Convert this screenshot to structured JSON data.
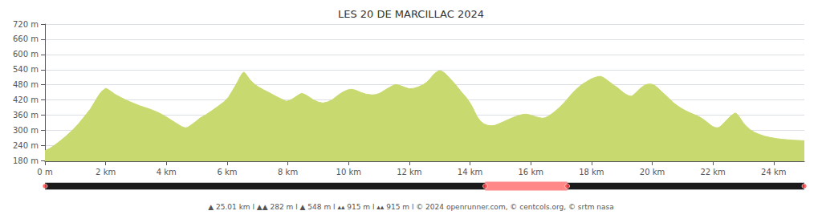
{
  "chart_data": {
    "type": "area",
    "title": "LES 20 DE MARCILLAC 2024",
    "footer": "▲ 25.01 km l ▲▲ 282 m l ▲ 548 m l ▴▴ 915 m l ▴▴ 915 m l © 2024 openrunner.com, © centcols.org, © srtm nasa",
    "x": [
      0,
      150,
      300,
      500,
      700,
      900,
      1100,
      1300,
      1500,
      1650,
      1750,
      1850,
      1950,
      2000,
      2050,
      2150,
      2300,
      2500,
      2700,
      2900,
      3100,
      3300,
      3500,
      3700,
      3900,
      4100,
      4300,
      4500,
      4620,
      4700,
      4800,
      4950,
      5100,
      5300,
      5500,
      5700,
      5900,
      6050,
      6150,
      6250,
      6350,
      6430,
      6480,
      6520,
      6550,
      6580,
      6620,
      6680,
      6750,
      6850,
      6950,
      7050,
      7200,
      7400,
      7600,
      7800,
      7950,
      8050,
      8150,
      8250,
      8350,
      8440,
      8520,
      8620,
      8720,
      8850,
      9000,
      9150,
      9300,
      9450,
      9580,
      9700,
      9820,
      9930,
      10030,
      10130,
      10250,
      10400,
      10580,
      10780,
      10920,
      11050,
      11180,
      11320,
      11440,
      11530,
      11620,
      11720,
      11850,
      12000,
      12150,
      12300,
      12450,
      12570,
      12680,
      12780,
      12870,
      12950,
      13000,
      13060,
      13150,
      13250,
      13380,
      13500,
      13620,
      13740,
      13860,
      13970,
      14060,
      14150,
      14230,
      14330,
      14450,
      14580,
      14700,
      14820,
      14950,
      15100,
      15280,
      15440,
      15580,
      15700,
      15820,
      15950,
      16050,
      16160,
      16280,
      16380,
      16480,
      16580,
      16680,
      16800,
      16920,
      17050,
      17180,
      17320,
      17460,
      17590,
      17710,
      17830,
      17940,
      18040,
      18140,
      18240,
      18310,
      18370,
      18440,
      18540,
      18640,
      18740,
      18840,
      18940,
      19040,
      19140,
      19240,
      19330,
      19420,
      19520,
      19630,
      19730,
      19830,
      19920,
      20000,
      20100,
      20200,
      20310,
      20430,
      20560,
      20690,
      20820,
      20960,
      21110,
      21270,
      21430,
      21560,
      21680,
      21790,
      21890,
      21980,
      22060,
      22130,
      22200,
      22290,
      22400,
      22510,
      22620,
      22720,
      22780,
      22840,
      22920,
      23010,
      23110,
      23220,
      23370,
      23530,
      23700,
      23880,
      24060,
      24250,
      24450,
      24660,
      24870,
      25010
    ],
    "values": [
      220,
      228,
      240,
      258,
      278,
      300,
      325,
      355,
      385,
      415,
      435,
      452,
      462,
      466,
      464,
      456,
      443,
      430,
      418,
      408,
      398,
      390,
      382,
      372,
      360,
      345,
      330,
      315,
      310,
      312,
      320,
      333,
      348,
      362,
      378,
      395,
      413,
      432,
      452,
      472,
      493,
      512,
      522,
      528,
      530,
      528,
      522,
      512,
      500,
      488,
      478,
      470,
      460,
      448,
      435,
      423,
      415,
      418,
      424,
      432,
      440,
      446,
      444,
      438,
      430,
      420,
      412,
      408,
      412,
      420,
      432,
      443,
      452,
      458,
      462,
      462,
      458,
      450,
      443,
      440,
      442,
      448,
      458,
      468,
      476,
      481,
      480,
      476,
      470,
      464,
      466,
      472,
      480,
      490,
      503,
      518,
      528,
      534,
      536,
      534,
      528,
      516,
      500,
      484,
      466,
      448,
      432,
      414,
      396,
      374,
      355,
      338,
      326,
      320,
      318,
      320,
      326,
      334,
      344,
      352,
      358,
      362,
      364,
      362,
      358,
      354,
      350,
      348,
      350,
      356,
      364,
      375,
      388,
      403,
      420,
      440,
      458,
      472,
      483,
      492,
      500,
      506,
      510,
      513,
      513,
      510,
      505,
      496,
      487,
      478,
      470,
      460,
      450,
      442,
      436,
      435,
      444,
      456,
      468,
      477,
      482,
      483,
      482,
      476,
      466,
      453,
      440,
      425,
      410,
      398,
      387,
      377,
      368,
      360,
      353,
      344,
      334,
      324,
      316,
      312,
      310,
      312,
      320,
      334,
      348,
      360,
      368,
      366,
      358,
      344,
      328,
      315,
      303,
      292,
      284,
      277,
      272,
      268,
      265,
      263,
      261,
      260,
      259
    ],
    "color": "#c8d96f",
    "xlim": [
      0,
      25010
    ],
    "xticks": [
      {
        "value": 0,
        "label": "0 m"
      },
      {
        "value": 2000,
        "label": "2 km"
      },
      {
        "value": 4000,
        "label": "4 km"
      },
      {
        "value": 6000,
        "label": "6 km"
      },
      {
        "value": 8000,
        "label": "8 km"
      },
      {
        "value": 10000,
        "label": "10 km"
      },
      {
        "value": 12000,
        "label": "12 km"
      },
      {
        "value": 14000,
        "label": "14 km"
      },
      {
        "value": 16000,
        "label": "16 km"
      },
      {
        "value": 18000,
        "label": "18 km"
      },
      {
        "value": 20000,
        "label": "20 km"
      },
      {
        "value": 22000,
        "label": "22 km"
      },
      {
        "value": 24000,
        "label": "24 km"
      }
    ],
    "ylim": [
      178,
      720
    ],
    "yticks": [
      {
        "value": 180,
        "label": "180 m"
      },
      {
        "value": 240,
        "label": "240 m"
      },
      {
        "value": 300,
        "label": "300 m"
      },
      {
        "value": 360,
        "label": "360 m"
      },
      {
        "value": 420,
        "label": "420 m"
      },
      {
        "value": 480,
        "label": "480 m"
      },
      {
        "value": 540,
        "label": "540 m"
      },
      {
        "value": 600,
        "label": "600 m"
      },
      {
        "value": 660,
        "label": "660 m"
      },
      {
        "value": 720,
        "label": "720 m"
      }
    ],
    "grid": "y",
    "progress_bar": {
      "xlim": [
        0,
        25010
      ],
      "color": "#1a1a1a",
      "segment": {
        "start": 14500,
        "end": 17200,
        "color": "#ff8888"
      },
      "markers": {
        "x": [
          0,
          14500,
          17200,
          25010
        ],
        "color": "#ff4444"
      }
    }
  }
}
